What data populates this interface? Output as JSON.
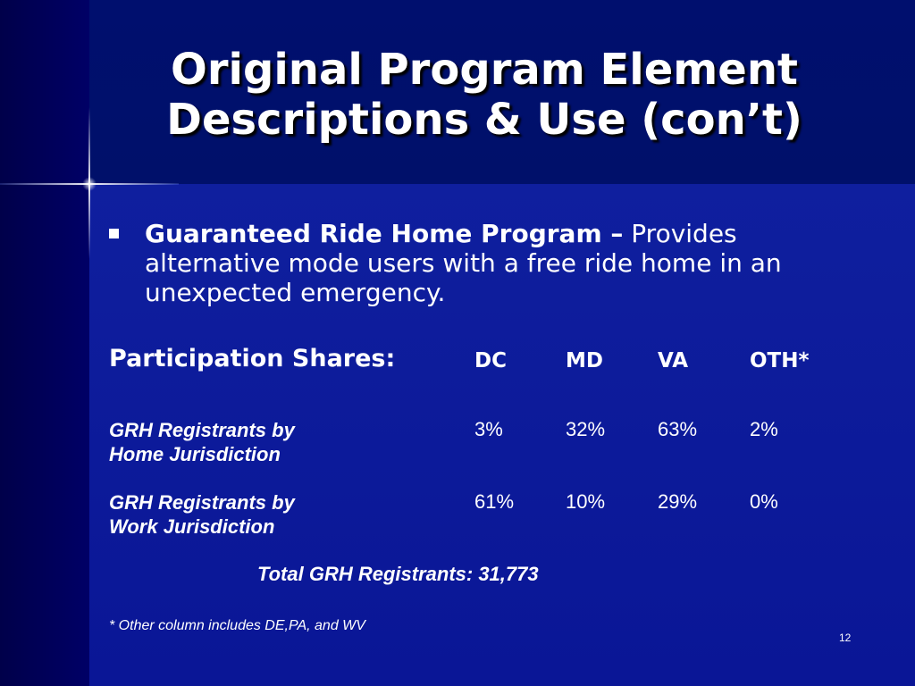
{
  "slide": {
    "title_line1": "Original Program Element",
    "title_line2": "Descriptions & Use (con’t)",
    "bullet": {
      "heading": "Guaranteed Ride Home Program –",
      "text": " Provides alternative mode users with a free ride home in an unexpected emergency."
    },
    "table": {
      "label": "Participation Shares:",
      "columns": [
        "DC",
        "MD",
        "VA",
        "OTH*"
      ],
      "rows": [
        {
          "label_line1": "GRH Registrants by",
          "label_line2": "Home Jurisdiction",
          "values": [
            "3%",
            "32%",
            "63%",
            "2%"
          ]
        },
        {
          "label_line1": "GRH Registrants by",
          "label_line2": "Work Jurisdiction",
          "values": [
            "61%",
            "10%",
            "29%",
            "0%"
          ]
        }
      ]
    },
    "total": "Total GRH Registrants: 31,773",
    "footnote": "* Other column includes DE,PA, and WV",
    "slide_number": "12"
  },
  "colors": {
    "background": "#000066",
    "title_band": "#000f6e",
    "content_panel": "#0f1f9e",
    "text": "#ffffff"
  }
}
